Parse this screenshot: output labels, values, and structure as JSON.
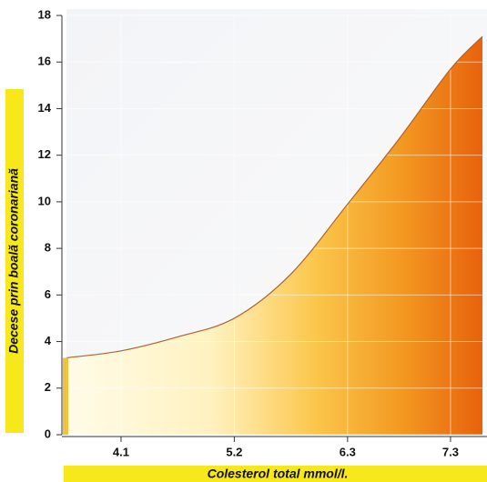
{
  "chart_data": {
    "type": "area",
    "x_label": "Colesterol total mmol/l.",
    "y_label": "Decese prin boală coronariană",
    "x": [
      3.57,
      4.1,
      4.65,
      5.2,
      5.75,
      6.3,
      6.8,
      7.3,
      7.61
    ],
    "values": [
      3.3,
      3.6,
      4.2,
      5.0,
      6.9,
      9.9,
      12.7,
      15.7,
      17.1
    ],
    "xlim": [
      3.57,
      7.61
    ],
    "xticks": [
      4.1,
      5.2,
      6.3,
      7.3
    ],
    "ylim": [
      0,
      18
    ],
    "yticks": [
      0,
      2,
      4,
      6,
      8,
      10,
      12,
      14,
      16,
      18
    ],
    "grid": true,
    "color": "#f07a10"
  }
}
